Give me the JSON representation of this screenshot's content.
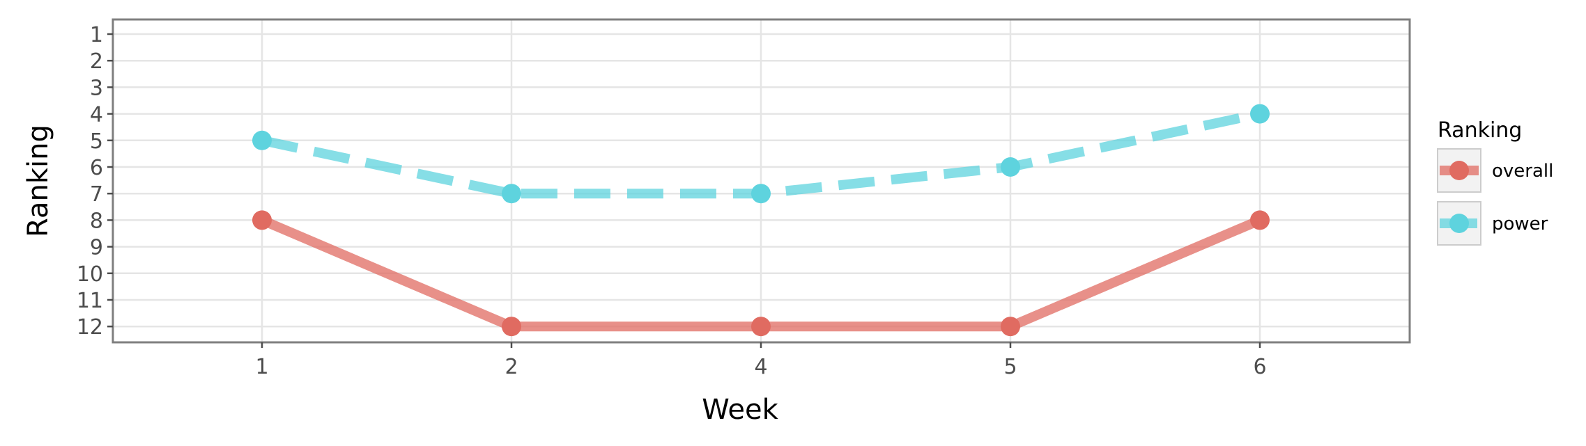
{
  "chart_data": {
    "type": "line",
    "title": "",
    "xlabel": "Week",
    "ylabel": "Ranking",
    "categories": [
      "1",
      "2",
      "4",
      "5",
      "6"
    ],
    "y_ticks": [
      "1",
      "2",
      "3",
      "4",
      "5",
      "6",
      "7",
      "8",
      "9",
      "10",
      "11",
      "12"
    ],
    "ylim": [
      1,
      12
    ],
    "y_reversed": true,
    "grid": true,
    "legend": {
      "title": "Ranking",
      "placement": "right"
    },
    "series": [
      {
        "name": "overall",
        "values": [
          8,
          12,
          12,
          12,
          8
        ],
        "color": "#e06b61",
        "line_style": "solid"
      },
      {
        "name": "power",
        "values": [
          5,
          7,
          7,
          6,
          4
        ],
        "color": "#5ed3de",
        "line_style": "dashed"
      }
    ]
  }
}
